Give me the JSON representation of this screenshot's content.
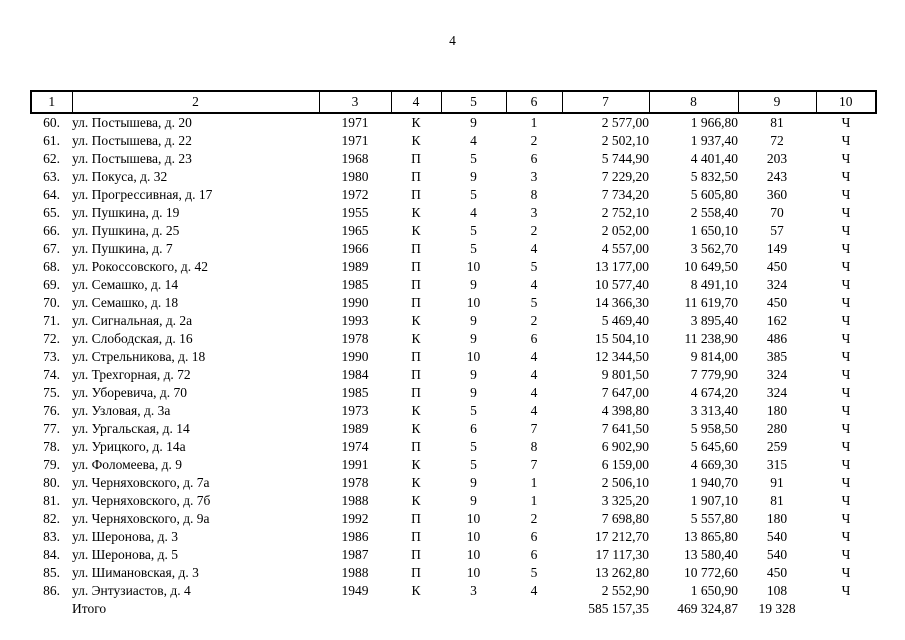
{
  "page": {
    "number": "4"
  },
  "table": {
    "header": [
      "1",
      "2",
      "3",
      "4",
      "5",
      "6",
      "7",
      "8",
      "9",
      "10"
    ],
    "rows": [
      [
        "60.",
        "ул. Постышева, д. 20",
        "1971",
        "К",
        "9",
        "1",
        "2 577,00",
        "1 966,80",
        "81",
        "Ч"
      ],
      [
        "61.",
        "ул. Постышева, д. 22",
        "1971",
        "К",
        "4",
        "2",
        "2 502,10",
        "1 937,40",
        "72",
        "Ч"
      ],
      [
        "62.",
        "ул. Постышева, д. 23",
        "1968",
        "П",
        "5",
        "6",
        "5 744,90",
        "4 401,40",
        "203",
        "Ч"
      ],
      [
        "63.",
        "ул. Покуса, д. 32",
        "1980",
        "П",
        "9",
        "3",
        "7 229,20",
        "5 832,50",
        "243",
        "Ч"
      ],
      [
        "64.",
        "ул. Прогрессивная, д. 17",
        "1972",
        "П",
        "5",
        "8",
        "7 734,20",
        "5 605,80",
        "360",
        "Ч"
      ],
      [
        "65.",
        "ул. Пушкина, д. 19",
        "1955",
        "К",
        "4",
        "3",
        "2 752,10",
        "2 558,40",
        "70",
        "Ч"
      ],
      [
        "66.",
        "ул. Пушкина, д. 25",
        "1965",
        "К",
        "5",
        "2",
        "2 052,00",
        "1 650,10",
        "57",
        "Ч"
      ],
      [
        "67.",
        "ул. Пушкина, д. 7",
        "1966",
        "П",
        "5",
        "4",
        "4 557,00",
        "3 562,70",
        "149",
        "Ч"
      ],
      [
        "68.",
        "ул. Рокоссовского, д. 42",
        "1989",
        "П",
        "10",
        "5",
        "13 177,00",
        "10 649,50",
        "450",
        "Ч"
      ],
      [
        "69.",
        "ул. Семашко, д. 14",
        "1985",
        "П",
        "9",
        "4",
        "10 577,40",
        "8 491,10",
        "324",
        "Ч"
      ],
      [
        "70.",
        "ул. Семашко, д. 18",
        "1990",
        "П",
        "10",
        "5",
        "14 366,30",
        "11 619,70",
        "450",
        "Ч"
      ],
      [
        "71.",
        "ул. Сигнальная, д. 2а",
        "1993",
        "К",
        "9",
        "2",
        "5 469,40",
        "3 895,40",
        "162",
        "Ч"
      ],
      [
        "72.",
        "ул. Слободская, д. 16",
        "1978",
        "К",
        "9",
        "6",
        "15 504,10",
        "11 238,90",
        "486",
        "Ч"
      ],
      [
        "73.",
        "ул. Стрельникова, д. 18",
        "1990",
        "П",
        "10",
        "4",
        "12 344,50",
        "9 814,00",
        "385",
        "Ч"
      ],
      [
        "74.",
        "ул. Трехгорная, д. 72",
        "1984",
        "П",
        "9",
        "4",
        "9 801,50",
        "7 779,90",
        "324",
        "Ч"
      ],
      [
        "75.",
        "ул. Уборевича, д. 70",
        "1985",
        "П",
        "9",
        "4",
        "7 647,00",
        "4 674,20",
        "324",
        "Ч"
      ],
      [
        "76.",
        "ул. Узловая, д. 3а",
        "1973",
        "К",
        "5",
        "4",
        "4 398,80",
        "3 313,40",
        "180",
        "Ч"
      ],
      [
        "77.",
        "ул. Ургальская, д. 14",
        "1989",
        "К",
        "6",
        "7",
        "7 641,50",
        "5 958,50",
        "280",
        "Ч"
      ],
      [
        "78.",
        "ул. Урицкого, д. 14а",
        "1974",
        "П",
        "5",
        "8",
        "6 902,90",
        "5 645,60",
        "259",
        "Ч"
      ],
      [
        "79.",
        "ул. Фоломеева, д. 9",
        "1991",
        "К",
        "5",
        "7",
        "6 159,00",
        "4 669,30",
        "315",
        "Ч"
      ],
      [
        "80.",
        "ул. Черняховского, д. 7а",
        "1978",
        "К",
        "9",
        "1",
        "2 506,10",
        "1 940,70",
        "91",
        "Ч"
      ],
      [
        "81.",
        "ул. Черняховского, д. 7б",
        "1988",
        "К",
        "9",
        "1",
        "3 325,20",
        "1 907,10",
        "81",
        "Ч"
      ],
      [
        "82.",
        "ул. Черняховского, д. 9а",
        "1992",
        "П",
        "10",
        "2",
        "7 698,80",
        "5 557,80",
        "180",
        "Ч"
      ],
      [
        "83.",
        "ул. Шеронова, д. 3",
        "1986",
        "П",
        "10",
        "6",
        "17 212,70",
        "13 865,80",
        "540",
        "Ч"
      ],
      [
        "84.",
        "ул. Шеронова, д. 5",
        "1987",
        "П",
        "10",
        "6",
        "17 117,30",
        "13 580,40",
        "540",
        "Ч"
      ],
      [
        "85.",
        "ул. Шимановская, д. 3",
        "1988",
        "П",
        "10",
        "5",
        "13 262,80",
        "10 772,60",
        "450",
        "Ч"
      ],
      [
        "86.",
        "ул. Энтузиастов, д. 4",
        "1949",
        "К",
        "3",
        "4",
        "2 552,90",
        "1 650,90",
        "108",
        "Ч"
      ]
    ],
    "total_row": [
      "",
      "Итого",
      "",
      "",
      "",
      "",
      "585 157,35",
      "469 324,87",
      "19 328",
      ""
    ]
  }
}
